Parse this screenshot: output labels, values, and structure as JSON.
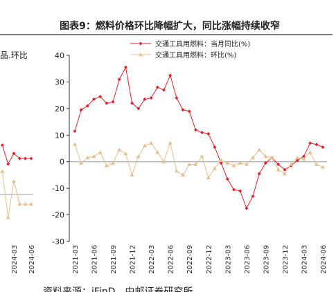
{
  "chart_data": [
    {
      "type": "line",
      "title": "图表9：燃料价格环比降幅扩大，同比涨幅持续收窄",
      "categories": [
        "2021-03",
        null,
        null,
        "2021-06",
        null,
        null,
        "2021-09",
        null,
        null,
        "2021-12",
        null,
        null,
        "2022-03",
        null,
        null,
        "2022-06",
        null,
        null,
        "2022-09",
        null,
        null,
        "2022-12",
        null,
        null,
        "2023-03",
        null,
        null,
        "2023-06",
        null,
        null,
        "2023-09",
        null,
        null,
        "2023-12",
        null,
        null,
        "2024-03",
        null,
        null,
        "2024-06"
      ],
      "series": [
        {
          "name": "交通工具用燃料：当月同比(%)",
          "color": "#e0202a",
          "marker": "diamond",
          "values": [
            11.5,
            19.5,
            21,
            23.5,
            24.5,
            22,
            22.5,
            31,
            35.5,
            22,
            20,
            23.5,
            24,
            28,
            27,
            32.5,
            24,
            19.5,
            19,
            12,
            11,
            10.5,
            5.5,
            -0.5,
            -6.5,
            -10.5,
            -11,
            -17.5,
            -13,
            -4.5,
            -0.5,
            1.5,
            -1,
            -3,
            -1.5,
            0.5,
            2,
            7,
            6.5,
            5.5
          ]
        },
        {
          "name": "交通工具用燃料：环比(%)",
          "color": "#e8bf8c",
          "marker": "triangle",
          "values": [
            6.5,
            -0.5,
            1.5,
            2,
            3.5,
            -1.5,
            -0.5,
            4.5,
            3,
            -5,
            2,
            6,
            7,
            3.5,
            0,
            7,
            -3.5,
            -5,
            -1,
            -1,
            2,
            -6,
            -2.5,
            0.5,
            -0.5,
            -1.5,
            -0.5,
            -1,
            1.5,
            4.5,
            2,
            1.5,
            -3,
            -4.5,
            -1,
            1.5,
            1,
            3.5,
            -1,
            -2
          ]
        }
      ],
      "ylim": [
        -30,
        40
      ],
      "yticks": [
        -30,
        -20,
        -10,
        0,
        10,
        20,
        30,
        40
      ]
    },
    {
      "type": "line",
      "legend_text": "品.环比",
      "categories": [
        null,
        null,
        "2024-03",
        null,
        null,
        "2024-06"
      ],
      "series": [
        {
          "color": "#e0202a",
          "marker": "diamond",
          "values": [
            17.8,
            11,
            14.8,
            13,
            13,
            13
          ]
        },
        {
          "color": "#e8bf8c",
          "marker": "triangle",
          "values": [
            8.3,
            -8.3,
            4.8,
            -3.5,
            -3.5,
            -3.5
          ]
        }
      ],
      "ylim": [
        -20,
        20
      ]
    }
  ],
  "source": "资料来源：iFinD，中邮证券研究所"
}
